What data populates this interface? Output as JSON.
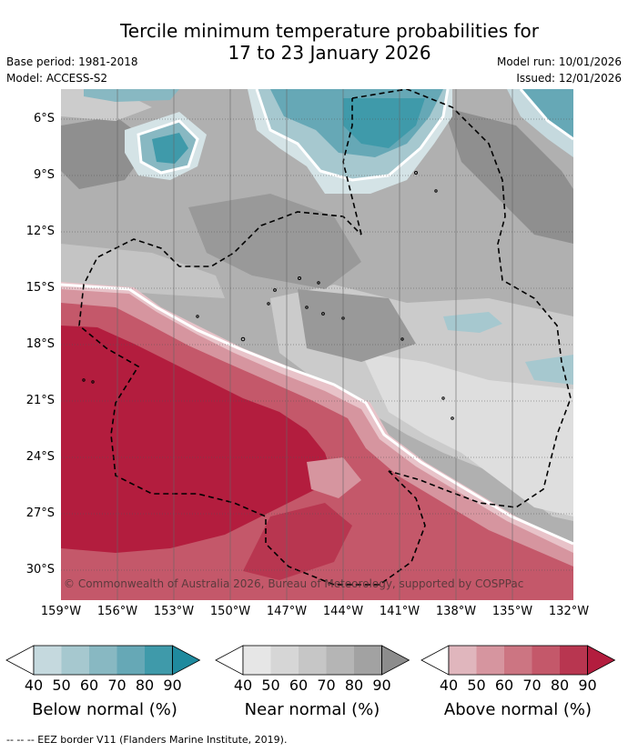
{
  "title_line1": "Tercile minimum temperature probabilities for",
  "title_line2": "17 to 23 January 2026",
  "base_period": "Base period: 1981-2018",
  "model": "Model: ACCESS-S2",
  "model_run": "Model run: 10/01/2026",
  "issued": "Issued: 12/01/2026",
  "copyright": "© Commonwealth of Australia 2026, Bureau of Meteorology, supported by COSPPac",
  "lat_labels": [
    "6°S",
    "9°S",
    "12°S",
    "15°S",
    "18°S",
    "21°S",
    "24°S",
    "27°S",
    "30°S"
  ],
  "lon_labels": [
    "159°W",
    "156°W",
    "153°W",
    "150°W",
    "147°W",
    "144°W",
    "141°W",
    "138°W",
    "135°W",
    "132°W"
  ],
  "colorbars": [
    {
      "label": "Below normal (%)",
      "ticks": [
        "40",
        "50",
        "60",
        "70",
        "80",
        "90"
      ],
      "colors": [
        "#c5d9de",
        "#a6c8cf",
        "#88b8c2",
        "#66a8b6",
        "#3f9aaa",
        "#1f8a9e"
      ]
    },
    {
      "label": "Near normal (%)",
      "ticks": [
        "40",
        "50",
        "60",
        "70",
        "80",
        "90"
      ],
      "colors": [
        "#e6e6e6",
        "#d6d6d6",
        "#c6c6c6",
        "#b5b5b5",
        "#a2a2a2",
        "#8c8c8c"
      ]
    },
    {
      "label": "Above normal (%)",
      "ticks": [
        "40",
        "50",
        "60",
        "70",
        "80",
        "90"
      ],
      "colors": [
        "#e0b6bd",
        "#d6959f",
        "#cc7582",
        "#c4586a",
        "#b83650",
        "#b31d3e"
      ]
    }
  ],
  "footnote": "--  --  -- EEZ border V11 (Flanders Marine Institute, 2019)."
}
